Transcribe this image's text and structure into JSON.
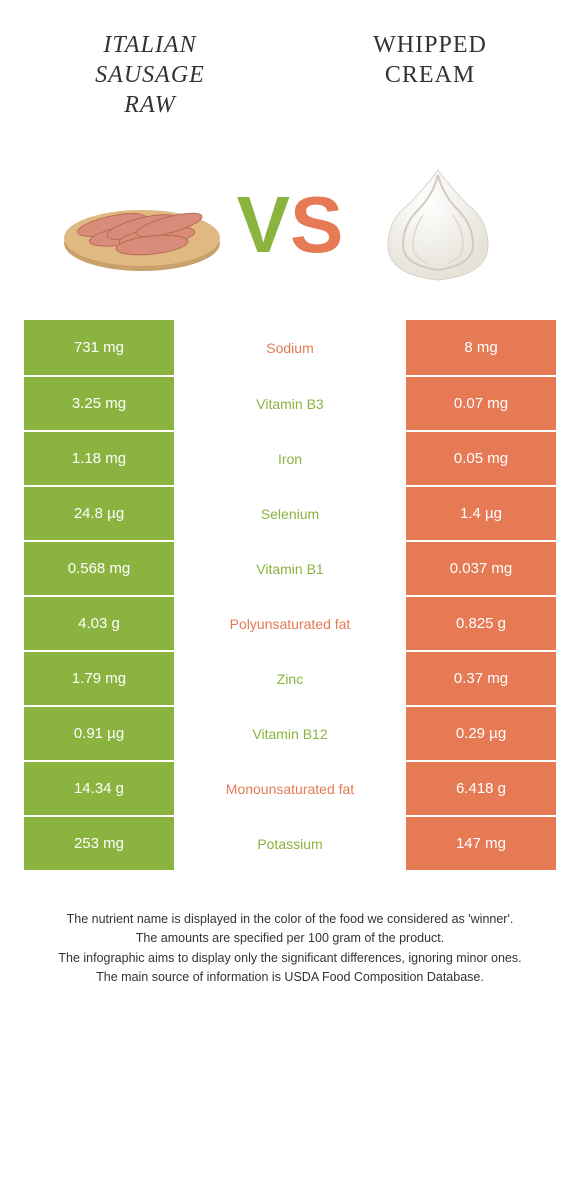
{
  "colors": {
    "green": "#8ab33f",
    "orange": "#e67a54",
    "row_border": "#ffffff",
    "text_dark": "#333333"
  },
  "header": {
    "left_line1": "ITALIAN",
    "left_line2": "SAUSAGE",
    "left_line3": "RAW",
    "right_line1": "WHIPPED",
    "right_line2": "CREAM"
  },
  "vs": {
    "v": "V",
    "s": "S"
  },
  "rows": [
    {
      "left": "731 mg",
      "label": "Sodium",
      "right": "8 mg",
      "label_color": "orange"
    },
    {
      "left": "3.25 mg",
      "label": "Vitamin B3",
      "right": "0.07 mg",
      "label_color": "green"
    },
    {
      "left": "1.18 mg",
      "label": "Iron",
      "right": "0.05 mg",
      "label_color": "green"
    },
    {
      "left": "24.8 µg",
      "label": "Selenium",
      "right": "1.4 µg",
      "label_color": "green"
    },
    {
      "left": "0.568 mg",
      "label": "Vitamin B1",
      "right": "0.037 mg",
      "label_color": "green"
    },
    {
      "left": "4.03 g",
      "label": "Polyunsaturated fat",
      "right": "0.825 g",
      "label_color": "orange"
    },
    {
      "left": "1.79 mg",
      "label": "Zinc",
      "right": "0.37 mg",
      "label_color": "green"
    },
    {
      "left": "0.91 µg",
      "label": "Vitamin B12",
      "right": "0.29 µg",
      "label_color": "green"
    },
    {
      "left": "14.34 g",
      "label": "Monounsaturated fat",
      "right": "6.418 g",
      "label_color": "orange"
    },
    {
      "left": "253 mg",
      "label": "Potassium",
      "right": "147 mg",
      "label_color": "green"
    }
  ],
  "footer": {
    "line1": "The nutrient name is displayed in the color of the food we considered as 'winner'.",
    "line2": "The amounts are specified per 100 gram of the product.",
    "line3": "The infographic aims to display only the significant differences, ignoring minor ones.",
    "line4": "The main source of information is USDA Food Composition Database."
  }
}
